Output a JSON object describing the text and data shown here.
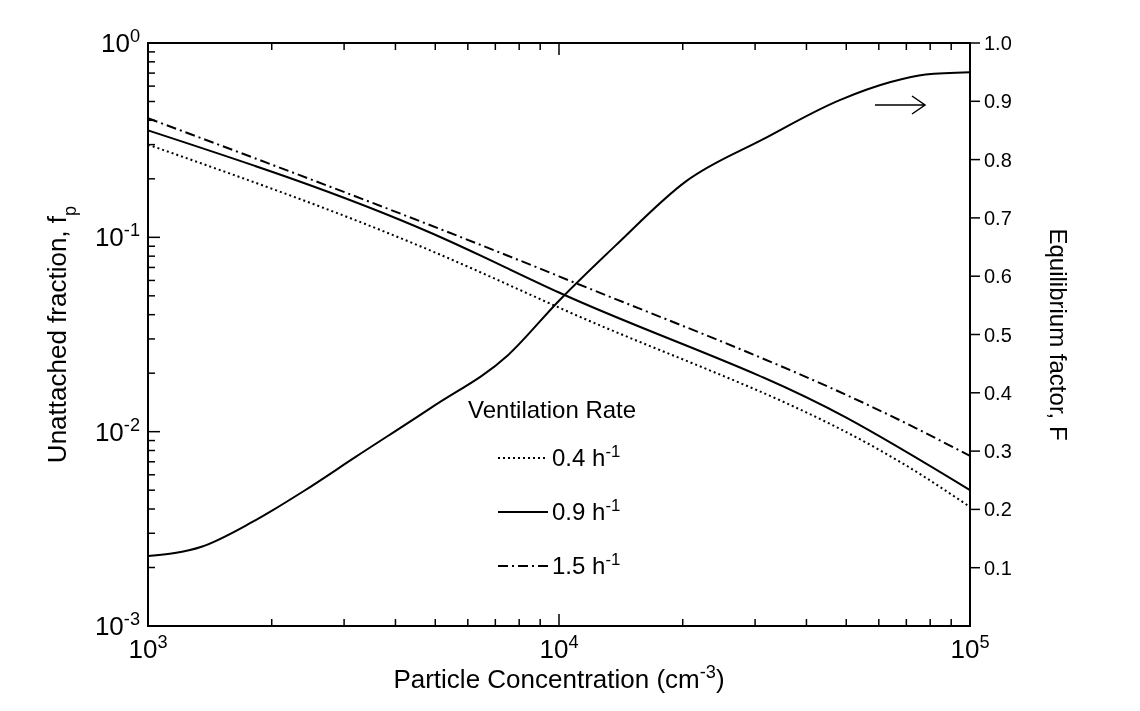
{
  "chart_data": {
    "type": "line",
    "xlabel": "Particle Concentration (cm$^{-3}$)",
    "ylabel": "Unattached fraction, f$_{p}$",
    "y2label": "Equilibrium factor, F",
    "legend_title": "Ventilation Rate",
    "log": "xy",
    "grid": false,
    "legend": "bottom",
    "marker": "none",
    "xlim": [
      1000,
      100000
    ],
    "xticks": [
      {
        "value": 1000,
        "label": "10$^{3}$"
      },
      {
        "value": 2000,
        "label": null
      },
      {
        "value": 3000,
        "label": null
      },
      {
        "value": 4000,
        "label": null
      },
      {
        "value": 5000,
        "label": null
      },
      {
        "value": 6000,
        "label": null
      },
      {
        "value": 7000,
        "label": null
      },
      {
        "value": 8000,
        "label": null
      },
      {
        "value": 9000,
        "label": null
      },
      {
        "value": 10000,
        "label": "10$^{4}$"
      },
      {
        "value": 20000,
        "label": null
      },
      {
        "value": 30000,
        "label": null
      },
      {
        "value": 40000,
        "label": null
      },
      {
        "value": 50000,
        "label": null
      },
      {
        "value": 60000,
        "label": null
      },
      {
        "value": 70000,
        "label": null
      },
      {
        "value": 80000,
        "label": null
      },
      {
        "value": 90000,
        "label": null
      },
      {
        "value": 100000,
        "label": "10$^{5}$"
      }
    ],
    "ylim": [
      0.001,
      1
    ],
    "yticks": [
      {
        "value": 0.001,
        "label": "10$^{-3}$"
      },
      {
        "value": 0.002,
        "label": null
      },
      {
        "value": 0.003,
        "label": null
      },
      {
        "value": 0.004,
        "label": null
      },
      {
        "value": 0.005,
        "label": null
      },
      {
        "value": 0.006,
        "label": null
      },
      {
        "value": 0.007,
        "label": null
      },
      {
        "value": 0.008,
        "label": null
      },
      {
        "value": 0.009,
        "label": null
      },
      {
        "value": 0.01,
        "label": "10$^{-2}$"
      },
      {
        "value": 0.02,
        "label": null
      },
      {
        "value": 0.03,
        "label": null
      },
      {
        "value": 0.04,
        "label": null
      },
      {
        "value": 0.05,
        "label": null
      },
      {
        "value": 0.06,
        "label": null
      },
      {
        "value": 0.07,
        "label": null
      },
      {
        "value": 0.08,
        "label": null
      },
      {
        "value": 0.09,
        "label": null
      },
      {
        "value": 0.1,
        "label": "10$^{-1}$"
      },
      {
        "value": 0.2,
        "label": null
      },
      {
        "value": 0.3,
        "label": null
      },
      {
        "value": 0.4,
        "label": null
      },
      {
        "value": 0.5,
        "label": null
      },
      {
        "value": 0.6,
        "label": null
      },
      {
        "value": 0.7,
        "label": null
      },
      {
        "value": 0.8,
        "label": null
      },
      {
        "value": 0.9,
        "label": null
      },
      {
        "value": 1,
        "label": "10$^{0}$"
      }
    ],
    "y2lim": [
      0,
      1
    ],
    "y2ticks": [
      0.1,
      0.2,
      0.3,
      0.4,
      0.5,
      0.6,
      0.7,
      0.8,
      0.9,
      {
        "value": 1,
        "label": "1.0"
      }
    ],
    "series": [
      {
        "name": "0.4 h$^{-1}$",
        "color": "#000000",
        "line_style": "dotted",
        "x": [
          1000,
          4900,
          10000,
          78000,
          100000
        ],
        "values": [
          0.3,
          0.085,
          0.0435,
          0.0058,
          0.0041
        ]
      },
      {
        "name": "0.9 h$^{-1}$",
        "color": "#000000",
        "line_style": "solid",
        "x": [
          1000,
          4900,
          10000,
          50000,
          100000
        ],
        "values": [
          0.355,
          0.105,
          0.052,
          0.0118,
          0.005
        ]
      },
      {
        "name": "1.5 h$^{-1}$",
        "color": "#000000",
        "line_style": "dashed",
        "x": [
          1000,
          10000,
          74000,
          100000
        ],
        "values": [
          0.41,
          0.063,
          0.0104,
          0.0075
        ]
      },
      {
        "color": "#000000",
        "line_style": "solid",
        "axis": "y2",
        "x": [
          1000,
          1350,
          1800,
          2400,
          3200,
          4900,
          7500,
          10000,
          13700,
          20400,
          31400,
          48200,
          64100,
          78000,
          100000
        ],
        "values": [
          0.12,
          0.136,
          0.179,
          0.232,
          0.29,
          0.375,
          0.464,
          0.558,
          0.652,
          0.763,
          0.835,
          0.902,
          0.933,
          0.946,
          0.95
        ]
      }
    ]
  }
}
